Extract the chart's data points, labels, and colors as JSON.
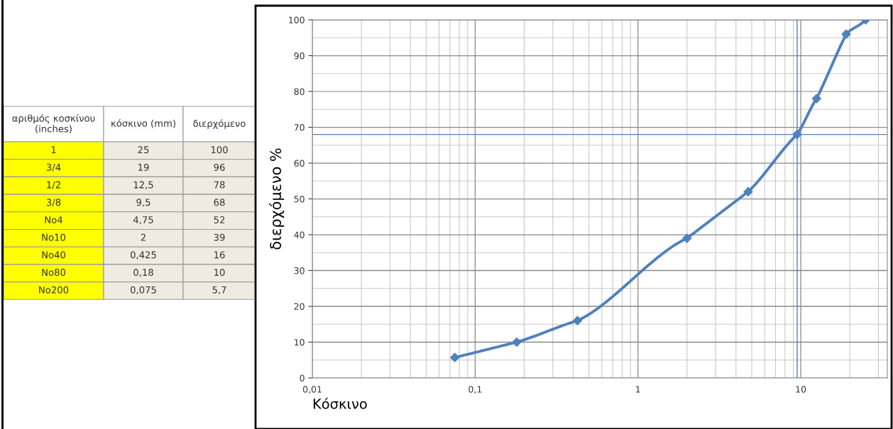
{
  "chart_data": [
    {
      "type": "other",
      "annotations": [
        "αριθμός κοσκίνου\n(inches)",
        "κόσκινο (mm)",
        "διερχόμενο",
        "1",
        "25",
        "100",
        "3/4",
        "19",
        "96",
        "1/2",
        "12,5",
        "78",
        "3/8",
        "9,5",
        "68",
        "No4",
        "4,75",
        "52",
        "No10",
        "2",
        "39",
        "No40",
        "0,425",
        "16",
        "No80",
        "0,18",
        "10",
        "No200",
        "0,075",
        "5,7"
      ]
    },
    {
      "type": "line",
      "xlabel": "Κόσκινο",
      "ylabel": "διερχόμενο %",
      "x": [
        25,
        19,
        12.5,
        9.5,
        4.75,
        2,
        0.425,
        0.18,
        0.075
      ],
      "series": [
        {
          "color": "#4f81bd",
          "values": [
            100,
            96,
            78,
            68,
            52,
            39,
            16,
            10,
            5.7
          ]
        }
      ],
      "log": "x",
      "xlim": [
        0.01,
        34
      ],
      "ylim": [
        0,
        100
      ],
      "xticks": [
        {
          "value": 0.01,
          "label": "0,01"
        },
        {
          "value": 0.1,
          "label": "0,1"
        },
        1,
        10
      ],
      "yticks": [
        0,
        10,
        20,
        30,
        40,
        50,
        60,
        70,
        80,
        90,
        100
      ],
      "grid": true,
      "marker": "diamond",
      "line_style": "solid",
      "ref_lines": [
        {
          "axis": "y",
          "value": 68,
          "color": "#4f81bd"
        },
        {
          "axis": "x",
          "value": 9.5,
          "color": "#4f81bd"
        }
      ]
    }
  ]
}
